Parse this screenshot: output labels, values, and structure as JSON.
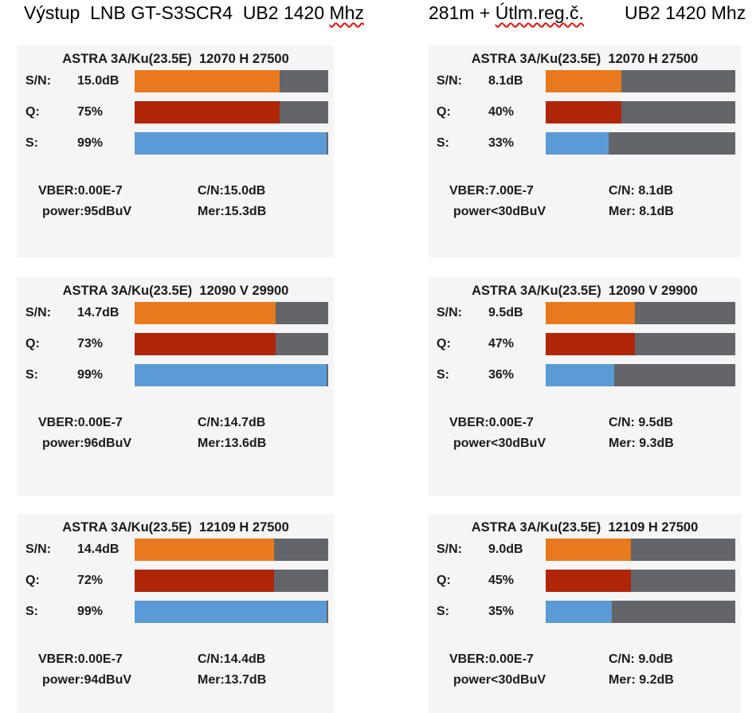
{
  "colors": {
    "snr": "#E8791E",
    "quality": "#B02508",
    "signal": "#5B9BD5",
    "track": "#63656A",
    "panel_bg": "#F5F5F5",
    "squiggle": "#E3120B"
  },
  "headers": {
    "left": {
      "prefix": "Výstup  LNB GT-S3SCR4  UB2 1420 ",
      "flagged": "Mhz",
      "suffix": ""
    },
    "right": {
      "prefix": "281m + ",
      "flagged": "Útlm.reg.č.",
      "suffix": "        UB2 1420 Mhz"
    }
  },
  "labels": {
    "snr": "S/N:",
    "quality": "Q:",
    "signal": "S:"
  },
  "panels": [
    {
      "id": "left-top",
      "title": "ASTRA 3A/Ku(23.5E)  12070 H 27500",
      "snr": {
        "value": "15.0dB",
        "pct": 75
      },
      "quality": {
        "value": "75%",
        "pct": 75
      },
      "signal": {
        "value": "99%",
        "pct": 99
      },
      "vber": "VBER:0.00E-7",
      "power": "power:95dBuV",
      "cn": "C/N:15.0dB",
      "mer": "Mer:15.3dB"
    },
    {
      "id": "right-top",
      "title": "ASTRA 3A/Ku(23.5E)  12070 H 27500",
      "snr": {
        "value": "8.1dB",
        "pct": 40
      },
      "quality": {
        "value": "40%",
        "pct": 40
      },
      "signal": {
        "value": "33%",
        "pct": 33
      },
      "vber": "VBER:7.00E-7",
      "power": "power<30dBuV",
      "cn": "C/N: 8.1dB",
      "mer": "Mer: 8.1dB"
    },
    {
      "id": "left-middle",
      "title": "ASTRA 3A/Ku(23.5E)  12090 V 29900",
      "snr": {
        "value": "14.7dB",
        "pct": 73
      },
      "quality": {
        "value": "73%",
        "pct": 73
      },
      "signal": {
        "value": "99%",
        "pct": 99
      },
      "vber": "VBER:0.00E-7",
      "power": "power:96dBuV",
      "cn": "C/N:14.7dB",
      "mer": "Mer:13.6dB"
    },
    {
      "id": "right-middle",
      "title": "ASTRA 3A/Ku(23.5E)  12090 V 29900",
      "snr": {
        "value": "9.5dB",
        "pct": 47
      },
      "quality": {
        "value": "47%",
        "pct": 47
      },
      "signal": {
        "value": "36%",
        "pct": 36
      },
      "vber": "VBER:0.00E-7",
      "power": "power<30dBuV",
      "cn": "C/N: 9.5dB",
      "mer": "Mer: 9.3dB"
    },
    {
      "id": "left-bottom",
      "title": "ASTRA 3A/Ku(23.5E)  12109 H 27500",
      "snr": {
        "value": "14.4dB",
        "pct": 72
      },
      "quality": {
        "value": "72%",
        "pct": 72
      },
      "signal": {
        "value": "99%",
        "pct": 99
      },
      "vber": "VBER:0.00E-7",
      "power": "power:94dBuV",
      "cn": "C/N:14.4dB",
      "mer": "Mer:13.7dB"
    },
    {
      "id": "right-bottom",
      "title": "ASTRA 3A/Ku(23.5E)  12109 H 27500",
      "snr": {
        "value": "9.0dB",
        "pct": 45
      },
      "quality": {
        "value": "45%",
        "pct": 45
      },
      "signal": {
        "value": "35%",
        "pct": 35
      },
      "vber": "VBER:0.00E-7",
      "power": "power<30dBuV",
      "cn": "C/N: 9.0dB",
      "mer": "Mer: 9.2dB"
    }
  ]
}
